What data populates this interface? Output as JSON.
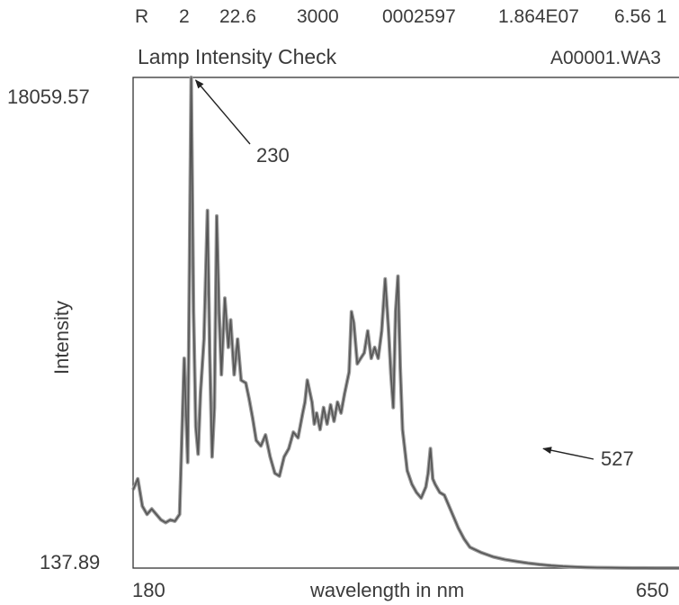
{
  "header": {
    "status_fields": [
      "R",
      "2",
      "22.6",
      "3000",
      "0002597",
      "1.864E07",
      "6.56 1"
    ],
    "title": "Lamp Intensity Check",
    "file_name": "A00001.WA3"
  },
  "chart_data": {
    "type": "line",
    "title": "Lamp Intensity Check",
    "xlabel": "wavelength in nm",
    "ylabel": "Intensity",
    "xlim": [
      180,
      650
    ],
    "ylim": [
      137.89,
      18059.57
    ],
    "tick_labels": {
      "x_min": "180",
      "x_max": "650",
      "y_min": "137.89",
      "y_max": "18059.57"
    },
    "grid": false,
    "annotations": [
      {
        "text": "230",
        "x": 230,
        "y": 18059.57
      },
      {
        "text": "527",
        "x": 527,
        "y": 4500
      }
    ],
    "series": [
      {
        "color": "#555555",
        "points": [
          [
            180,
            3000
          ],
          [
            184,
            3400
          ],
          [
            188,
            2400
          ],
          [
            192,
            2100
          ],
          [
            196,
            2300
          ],
          [
            200,
            2100
          ],
          [
            204,
            1900
          ],
          [
            208,
            1800
          ],
          [
            212,
            1900
          ],
          [
            216,
            1850
          ],
          [
            220,
            2100
          ],
          [
            224,
            7800
          ],
          [
            227,
            4000
          ],
          [
            230,
            18059.57
          ],
          [
            232,
            9500
          ],
          [
            234,
            5300
          ],
          [
            236,
            4300
          ],
          [
            238,
            6500
          ],
          [
            241,
            8500
          ],
          [
            244,
            13200
          ],
          [
            246,
            8000
          ],
          [
            248,
            4200
          ],
          [
            250,
            6000
          ],
          [
            252,
            13000
          ],
          [
            254,
            9500
          ],
          [
            256,
            7200
          ],
          [
            259,
            10000
          ],
          [
            262,
            8200
          ],
          [
            264,
            9200
          ],
          [
            267,
            7200
          ],
          [
            270,
            8500
          ],
          [
            273,
            7000
          ],
          [
            277,
            6900
          ],
          [
            280,
            6300
          ],
          [
            283,
            5600
          ],
          [
            286,
            4800
          ],
          [
            290,
            4600
          ],
          [
            294,
            5000
          ],
          [
            298,
            4200
          ],
          [
            302,
            3600
          ],
          [
            306,
            3500
          ],
          [
            310,
            4200
          ],
          [
            314,
            4500
          ],
          [
            318,
            5100
          ],
          [
            322,
            4900
          ],
          [
            326,
            5800
          ],
          [
            328,
            6200
          ],
          [
            330,
            7000
          ],
          [
            332,
            6600
          ],
          [
            334,
            6200
          ],
          [
            336,
            5400
          ],
          [
            338,
            5800
          ],
          [
            341,
            5200
          ],
          [
            344,
            6000
          ],
          [
            347,
            5400
          ],
          [
            350,
            6100
          ],
          [
            353,
            5500
          ],
          [
            356,
            6200
          ],
          [
            359,
            5800
          ],
          [
            362,
            6500
          ],
          [
            366,
            7300
          ],
          [
            368,
            9500
          ],
          [
            370,
            9100
          ],
          [
            373,
            7600
          ],
          [
            376,
            7800
          ],
          [
            379,
            8000
          ],
          [
            382,
            8800
          ],
          [
            385,
            7800
          ],
          [
            388,
            8200
          ],
          [
            391,
            7800
          ],
          [
            394,
            8800
          ],
          [
            397,
            10700
          ],
          [
            400,
            8800
          ],
          [
            402,
            7200
          ],
          [
            404,
            6000
          ],
          [
            406,
            9500
          ],
          [
            408,
            10800
          ],
          [
            410,
            7500
          ],
          [
            412,
            5200
          ],
          [
            416,
            3700
          ],
          [
            420,
            3200
          ],
          [
            424,
            2900
          ],
          [
            428,
            2700
          ],
          [
            432,
            3100
          ],
          [
            434,
            3600
          ],
          [
            436,
            4500
          ],
          [
            438,
            3400
          ],
          [
            440,
            3200
          ],
          [
            444,
            2900
          ],
          [
            448,
            2800
          ],
          [
            452,
            2400
          ],
          [
            456,
            2000
          ],
          [
            460,
            1600
          ],
          [
            465,
            1200
          ],
          [
            470,
            900
          ],
          [
            475,
            800
          ],
          [
            480,
            700
          ],
          [
            490,
            550
          ],
          [
            500,
            450
          ],
          [
            510,
            380
          ],
          [
            520,
            320
          ],
          [
            530,
            270
          ],
          [
            540,
            230
          ],
          [
            550,
            200
          ],
          [
            560,
            180
          ],
          [
            570,
            165
          ],
          [
            580,
            155
          ],
          [
            590,
            150
          ],
          [
            600,
            145
          ],
          [
            610,
            142
          ],
          [
            620,
            140
          ],
          [
            630,
            139
          ],
          [
            640,
            138
          ],
          [
            650,
            137.89
          ]
        ]
      }
    ]
  }
}
